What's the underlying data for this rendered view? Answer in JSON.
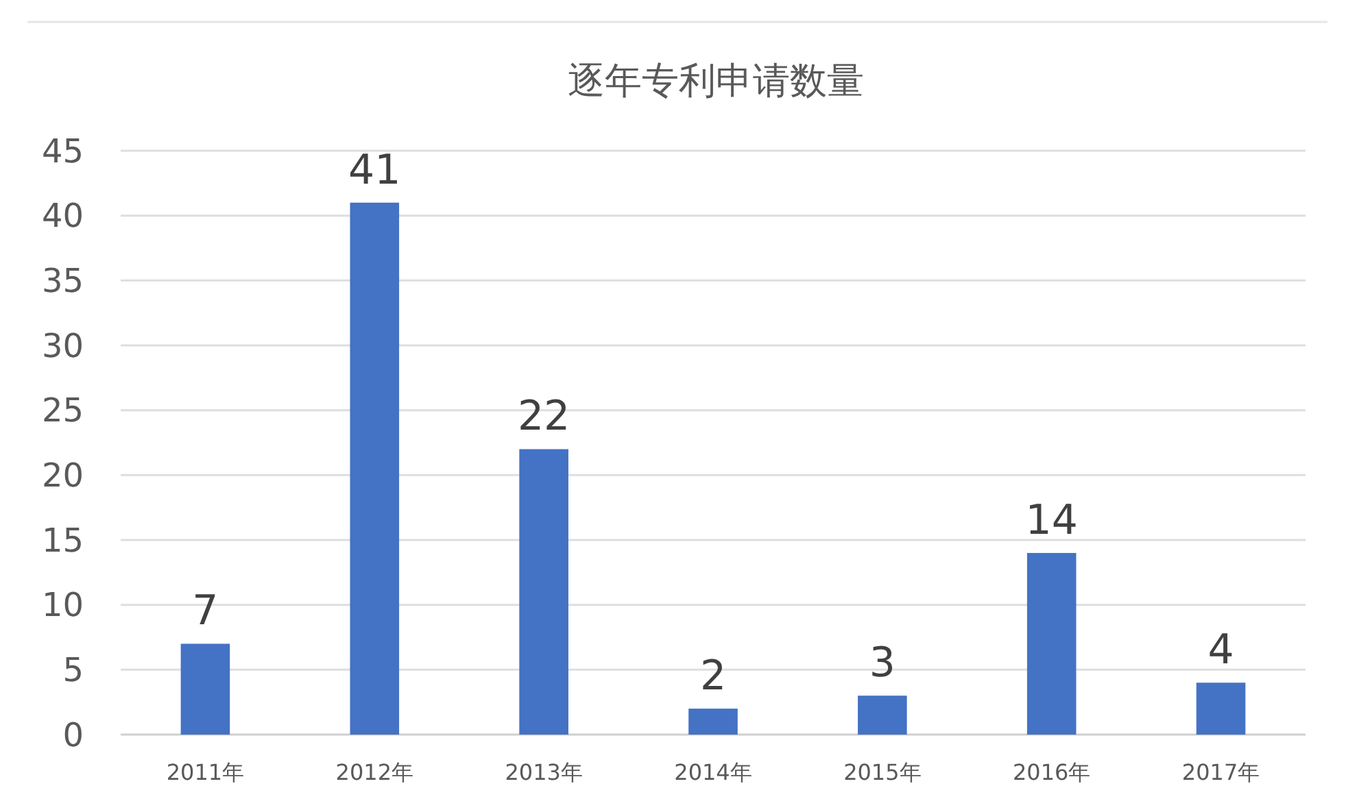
{
  "chart_data": {
    "type": "bar",
    "title": "逐年专利申请数量",
    "categories": [
      "2011年",
      "2012年",
      "2013年",
      "2014年",
      "2015年",
      "2016年",
      "2017年"
    ],
    "values": [
      7,
      41,
      22,
      2,
      3,
      14,
      4
    ],
    "color": "#4472c4",
    "ylim": [
      0,
      45
    ],
    "yticks": [
      0,
      5,
      10,
      15,
      20,
      25,
      30,
      35,
      40,
      45
    ],
    "grid": "y",
    "data_labels": true
  }
}
